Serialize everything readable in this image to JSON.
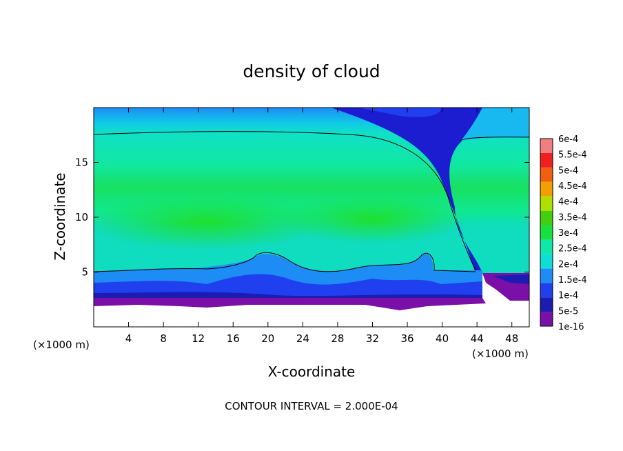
{
  "chart_data": {
    "type": "heatmap",
    "title": "density of cloud",
    "xlabel": "X-coordinate",
    "ylabel": "Z-coordinate",
    "x_unit": "(×1000 m)",
    "y_unit": "(×1000 m)",
    "xlim": [
      0,
      50
    ],
    "ylim": [
      0,
      20
    ],
    "x_ticks": [
      4,
      8,
      12,
      16,
      20,
      24,
      28,
      32,
      36,
      40,
      44,
      48
    ],
    "y_ticks": [
      5,
      10,
      15
    ],
    "footer": "CONTOUR INTERVAL = 2.000E-04",
    "colorbar": {
      "labels": [
        "1e-16",
        "5e-5",
        "1e-4",
        "1.5e-4",
        "2e-4",
        "2.5e-4",
        "3e-4",
        "3.5e-4",
        "4e-4",
        "4.5e-4",
        "5e-4",
        "5.5e-4",
        "6e-4"
      ],
      "colors": [
        "#7a10a8",
        "#1c1cb0",
        "#2040f0",
        "#1e8cf5",
        "#10dcd8",
        "#10e8a8",
        "#18e040",
        "#40d010",
        "#b0e000",
        "#f0a000",
        "#f06010",
        "#f02020",
        "#f08080"
      ]
    },
    "contour_level": "2e-4",
    "colors": {
      "background": "#ffffff",
      "low_density": "#7a10a8",
      "upper_layer": "#20d8e8",
      "core": "#18e040"
    }
  }
}
